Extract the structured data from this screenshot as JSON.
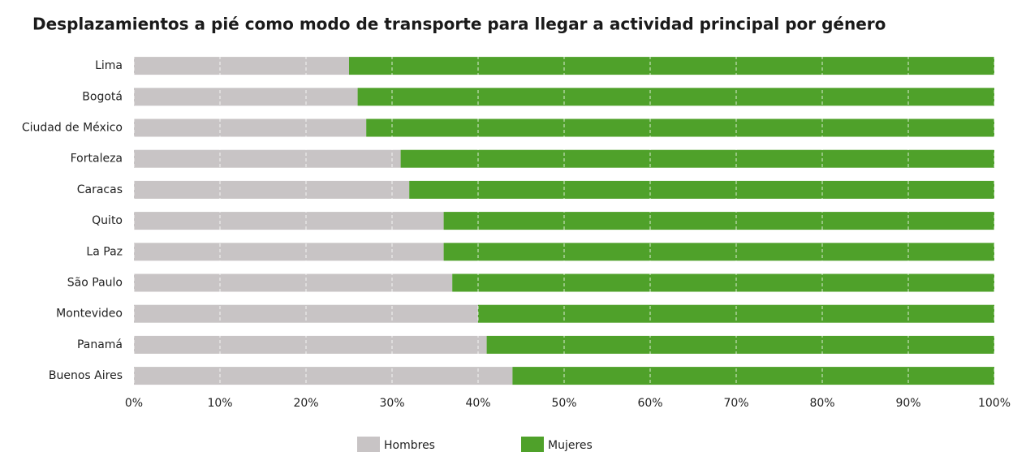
{
  "chart_data": {
    "type": "stacked_barh",
    "title": "Desplazamientos a pié como modo de transporte para llegar a actividad principal por género",
    "categories": [
      "Lima",
      "Bogotá",
      "Ciudad de México",
      "Fortaleza",
      "Caracas",
      "Quito",
      "La Paz",
      "São Paulo",
      "Montevideo",
      "Panamá",
      "Buenos Aires"
    ],
    "series": [
      {
        "name": "Hombres",
        "color": "#c8c4c5",
        "values": [
          25,
          26,
          27,
          31,
          32,
          36,
          36,
          37,
          40,
          41,
          44
        ]
      },
      {
        "name": "Mujeres",
        "color": "#4fa12a",
        "values": [
          75,
          74,
          73,
          69,
          68,
          64,
          64,
          63,
          60,
          59,
          56
        ]
      }
    ],
    "xlim": [
      0,
      100
    ],
    "xticks": [
      {
        "value": 0,
        "label": "0%"
      },
      {
        "value": 10,
        "label": "10%"
      },
      {
        "value": 20,
        "label": "20%"
      },
      {
        "value": 30,
        "label": "30%"
      },
      {
        "value": 40,
        "label": "40%"
      },
      {
        "value": 50,
        "label": "50%"
      },
      {
        "value": 60,
        "label": "60%"
      },
      {
        "value": 70,
        "label": "70%"
      },
      {
        "value": 80,
        "label": "80%"
      },
      {
        "value": 90,
        "label": "90%"
      },
      {
        "value": 100,
        "label": "100%"
      }
    ],
    "grid": true,
    "legend": "bottom"
  }
}
